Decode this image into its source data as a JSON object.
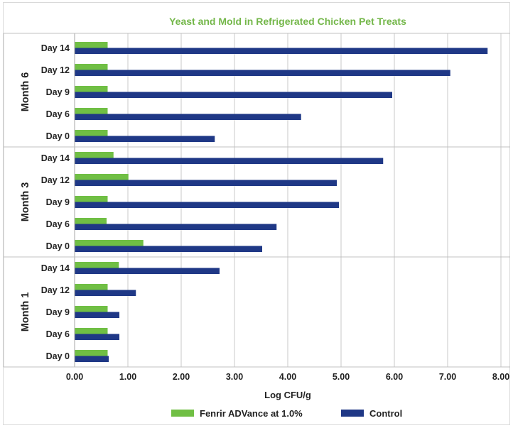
{
  "chart_data": {
    "type": "bar",
    "orientation": "horizontal",
    "title": "Yeast and Mold in Refrigerated Chicken Pet Treats",
    "title_color": "#74b74a",
    "xlabel": "Log CFU/g",
    "ylabel": "",
    "xlim": [
      0,
      8
    ],
    "xticks": [
      "0.00",
      "1.00",
      "2.00",
      "3.00",
      "4.00",
      "5.00",
      "6.00",
      "7.00",
      "8.00"
    ],
    "grid": true,
    "legend": "bottom",
    "groups": [
      {
        "name": "Month 6",
        "categories": [
          "Day 14",
          "Day 12",
          "Day 9",
          "Day 6",
          "Day 0"
        ]
      },
      {
        "name": "Month 3",
        "categories": [
          "Day 14",
          "Day 12",
          "Day 9",
          "Day 6",
          "Day 0"
        ]
      },
      {
        "name": "Month 1",
        "categories": [
          "Day 14",
          "Day 12",
          "Day 9",
          "Day 6",
          "Day 0"
        ]
      }
    ],
    "series": [
      {
        "name": "Fenrir ADVance at 1.0%",
        "color": "#70bf44",
        "values": [
          [
            0.62,
            0.62,
            0.62,
            0.62,
            0.62
          ],
          [
            0.73,
            1.01,
            0.62,
            0.6,
            1.29
          ],
          [
            0.83,
            0.62,
            0.62,
            0.62,
            0.62
          ]
        ]
      },
      {
        "name": "Control",
        "color": "#1f3886",
        "values": [
          [
            7.75,
            7.05,
            5.96,
            4.25,
            2.63
          ],
          [
            5.79,
            4.92,
            4.96,
            3.79,
            3.52
          ],
          [
            2.72,
            1.15,
            0.84,
            0.84,
            0.64
          ]
        ]
      }
    ]
  }
}
